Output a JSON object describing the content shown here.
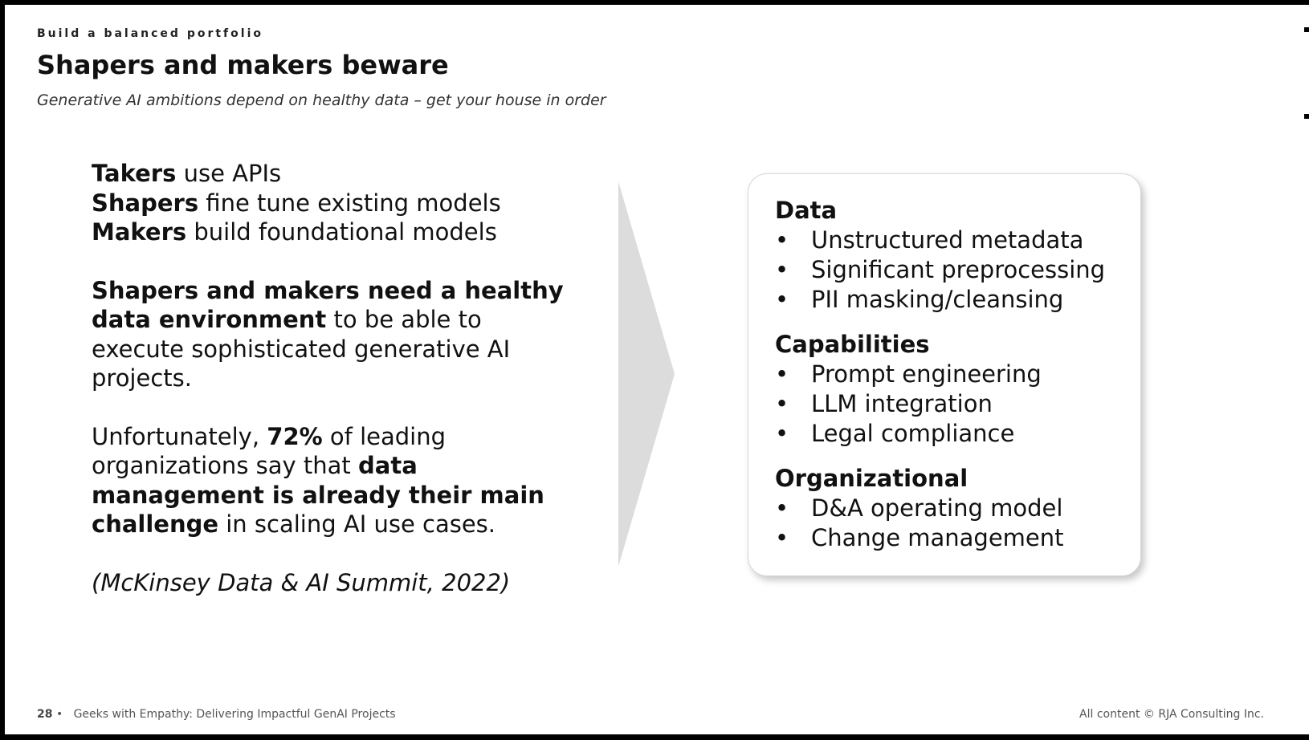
{
  "header": {
    "kicker": "Build a balanced portfolio",
    "title": "Shapers and makers beware",
    "subtitle": "Generative AI ambitions depend on healthy data – get your house in order"
  },
  "left": {
    "line1_bold": "Takers",
    "line1_rest": " use APIs",
    "line2_bold": "Shapers",
    "line2_rest": " fine tune existing models",
    "line3_bold": "Makers",
    "line3_rest": " build foundational models",
    "para2_bold": "Shapers and makers need a healthy data environment",
    "para2_rest": " to be able to execute sophisticated generative AI projects.",
    "para3_a": "Unfortunately, ",
    "para3_bold1": "72%",
    "para3_b": " of leading organizations say that ",
    "para3_bold2": "data management is already their main challenge",
    "para3_c": " in scaling AI use cases.",
    "citation": "(McKinsey Data & AI Summit, 2022)"
  },
  "card": {
    "bullet": "•",
    "sections": [
      {
        "heading": "Data",
        "items": [
          "Unstructured metadata",
          "Significant preprocessing",
          "PII masking/cleansing"
        ]
      },
      {
        "heading": "Capabilities",
        "items": [
          "Prompt engineering",
          "LLM integration",
          "Legal compliance"
        ]
      },
      {
        "heading": "Organizational",
        "items": [
          "D&A operating model",
          "Change management"
        ]
      }
    ]
  },
  "footer": {
    "page_number": "28",
    "separator": "•",
    "deck_title": "Geeks with Empathy: Delivering Impactful GenAI Projects",
    "copyright": "All content © RJA Consulting Inc."
  },
  "colors": {
    "background": "#ffffff",
    "text": "#111111",
    "chevron": "#dcdcdc",
    "frame": "#000000"
  }
}
